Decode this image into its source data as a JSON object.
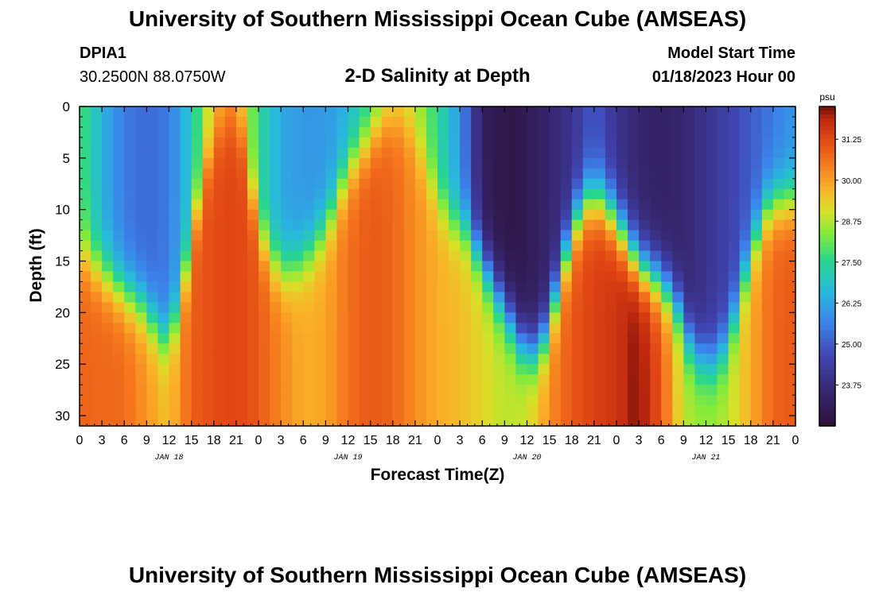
{
  "header": {
    "title": "University of Southern Mississippi Ocean Cube (AMSEAS)",
    "station_id": "DPIA1",
    "coordinates": "30.2500N  88.0750W",
    "plot_title": "2-D Salinity at Depth",
    "model_start_label": "Model Start Time",
    "model_start_value": "01/18/2023 Hour 00"
  },
  "footer": {
    "title": "University of Southern Mississippi Ocean Cube (AMSEAS)"
  },
  "chart_data": {
    "type": "heatmap",
    "title": "2-D Salinity at Depth",
    "xlabel": "Forecast Time(Z)",
    "ylabel": "Depth (ft)",
    "x_hours_range": [
      0,
      96
    ],
    "x_tick_labels": [
      "0",
      "3",
      "6",
      "9",
      "12",
      "15",
      "18",
      "21",
      "0",
      "3",
      "6",
      "9",
      "12",
      "15",
      "18",
      "21",
      "0",
      "3",
      "6",
      "9",
      "12",
      "15",
      "18",
      "21",
      "0",
      "3",
      "6",
      "9",
      "12",
      "15",
      "18",
      "21",
      "0"
    ],
    "x_day_labels": [
      {
        "label": "JAN 18",
        "hour": 12
      },
      {
        "label": "JAN 19",
        "hour": 36
      },
      {
        "label": "JAN 20",
        "hour": 60
      },
      {
        "label": "JAN 21",
        "hour": 84
      }
    ],
    "y_range": [
      0,
      31
    ],
    "y_ticks": [
      0,
      5,
      10,
      15,
      20,
      25,
      30
    ],
    "colorbar": {
      "unit": "psu",
      "range": [
        22.5,
        32.25
      ],
      "tick_values": [
        31.25,
        30.0,
        28.75,
        27.5,
        26.25,
        25.0,
        23.75
      ],
      "tick_labels": [
        "31.25",
        "30.00",
        "28.75",
        "27.50",
        "26.25",
        "25.00",
        "23.75"
      ]
    },
    "fresh_layer_depth_ft_by_hour": [
      [
        0,
        14
      ],
      [
        3,
        16
      ],
      [
        6,
        18
      ],
      [
        8,
        19
      ],
      [
        10,
        21
      ],
      [
        12,
        23
      ],
      [
        14,
        17
      ],
      [
        16,
        9
      ],
      [
        18,
        3
      ],
      [
        20,
        1
      ],
      [
        22,
        3
      ],
      [
        24,
        12
      ],
      [
        26,
        15
      ],
      [
        28,
        16
      ],
      [
        30,
        15
      ],
      [
        32,
        13
      ],
      [
        34,
        10
      ],
      [
        36,
        6
      ],
      [
        38,
        4
      ],
      [
        40,
        2
      ],
      [
        42,
        1
      ],
      [
        44,
        2
      ],
      [
        46,
        5
      ],
      [
        48,
        9
      ],
      [
        50,
        11
      ],
      [
        52,
        12
      ],
      [
        54,
        15
      ],
      [
        56,
        18
      ],
      [
        58,
        21
      ],
      [
        60,
        24
      ],
      [
        62,
        23
      ],
      [
        64,
        18
      ],
      [
        66,
        12
      ],
      [
        68,
        9
      ],
      [
        70,
        9
      ],
      [
        72,
        11
      ],
      [
        74,
        14
      ],
      [
        76,
        16
      ],
      [
        78,
        17
      ],
      [
        80,
        19
      ],
      [
        82,
        23
      ],
      [
        84,
        25
      ],
      [
        86,
        24
      ],
      [
        88,
        20
      ],
      [
        90,
        14
      ],
      [
        92,
        10
      ],
      [
        94,
        9
      ],
      [
        96,
        9
      ]
    ],
    "surface_salinity_by_hour": [
      [
        0,
        28.0
      ],
      [
        3,
        26.5
      ],
      [
        6,
        25.5
      ],
      [
        9,
        25.2
      ],
      [
        12,
        25.5
      ],
      [
        15,
        27
      ],
      [
        18,
        29.5
      ],
      [
        21,
        30.0
      ],
      [
        24,
        27.5
      ],
      [
        27,
        26.3
      ],
      [
        30,
        26.0
      ],
      [
        33,
        26.0
      ],
      [
        36,
        26.5
      ],
      [
        39,
        27.5
      ],
      [
        42,
        29.0
      ],
      [
        45,
        28.8
      ],
      [
        48,
        27.5
      ],
      [
        51,
        26.0
      ],
      [
        54,
        23.2
      ],
      [
        57,
        22.8
      ],
      [
        60,
        23.0
      ],
      [
        63,
        23.5
      ],
      [
        66,
        24.0
      ],
      [
        69,
        25.0
      ],
      [
        72,
        24.0
      ],
      [
        75,
        23.5
      ],
      [
        78,
        23.3
      ],
      [
        81,
        23.5
      ],
      [
        84,
        24.0
      ],
      [
        87,
        24.5
      ],
      [
        90,
        25.0
      ],
      [
        93,
        25.5
      ],
      [
        96,
        26.0
      ]
    ],
    "deep_salinity_by_hour": [
      [
        0,
        30.8
      ],
      [
        6,
        30.7
      ],
      [
        12,
        29.5
      ],
      [
        15,
        30.9
      ],
      [
        18,
        31.2
      ],
      [
        21,
        31.3
      ],
      [
        24,
        31.0
      ],
      [
        27,
        30.3
      ],
      [
        30,
        29.8
      ],
      [
        33,
        29.9
      ],
      [
        36,
        30.6
      ],
      [
        39,
        31.0
      ],
      [
        42,
        30.8
      ],
      [
        45,
        30.2
      ],
      [
        48,
        29.8
      ],
      [
        51,
        29.6
      ],
      [
        54,
        29.2
      ],
      [
        57,
        28.8
      ],
      [
        60,
        29.0
      ],
      [
        63,
        30.2
      ],
      [
        66,
        31.0
      ],
      [
        69,
        31.4
      ],
      [
        72,
        31.6
      ],
      [
        75,
        32.2
      ],
      [
        78,
        31.0
      ],
      [
        81,
        28.8
      ],
      [
        84,
        28.5
      ],
      [
        87,
        28.8
      ],
      [
        90,
        29.8
      ],
      [
        93,
        30.8
      ],
      [
        96,
        31.0
      ]
    ]
  }
}
